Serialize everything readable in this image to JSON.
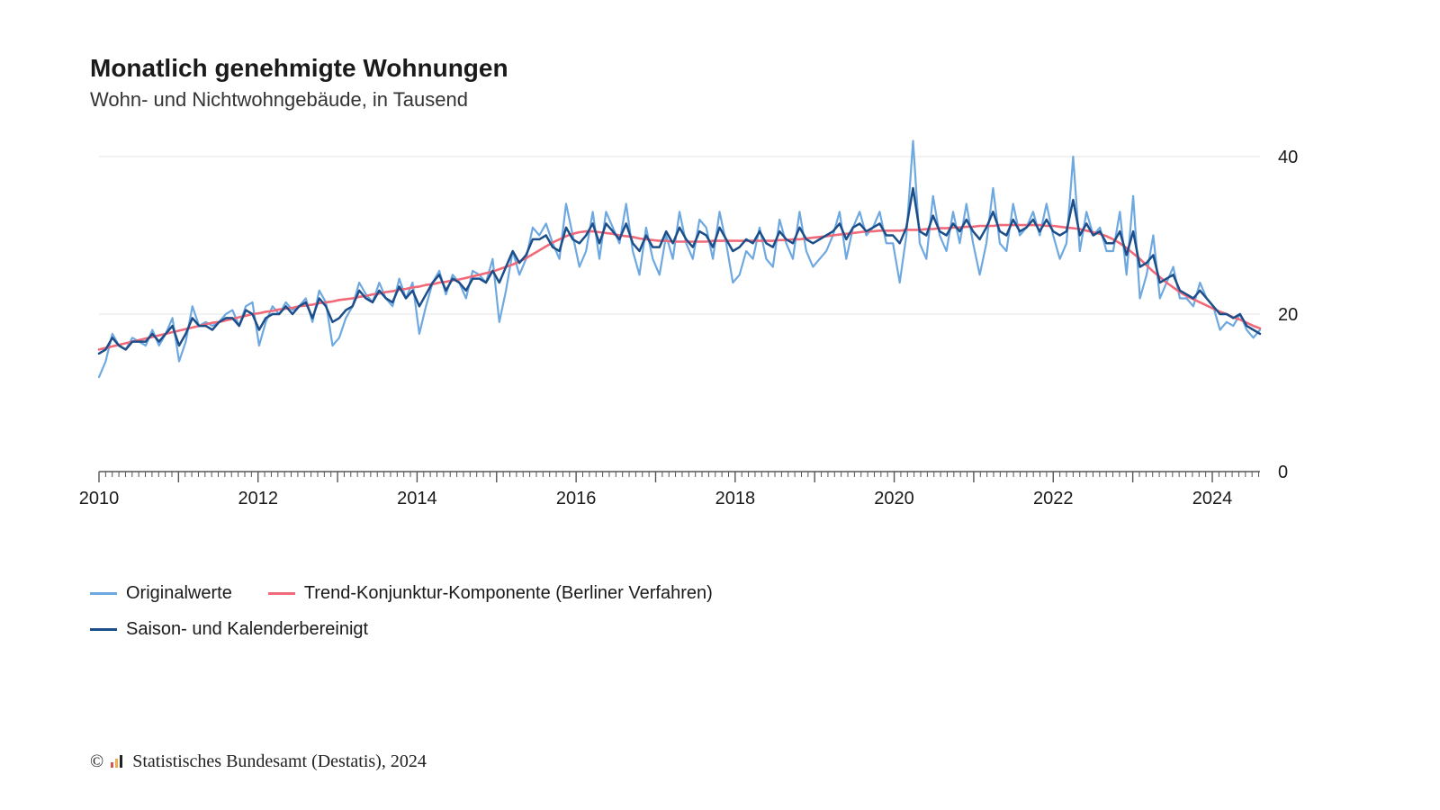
{
  "header": {
    "title": "Monatlich genehmigte Wohnungen",
    "subtitle": "Wohn- und Nichtwohngebäude, in Tausend"
  },
  "chart": {
    "type": "line",
    "background_color": "#ffffff",
    "grid_color": "#e4e4e4",
    "axis_color": "#555555",
    "tick_color": "#555555",
    "label_color": "#1a1a1a",
    "label_fontsize": 20,
    "x": {
      "min": 2010.0,
      "max": 2024.6,
      "major_ticks": [
        2010,
        2012,
        2014,
        2016,
        2018,
        2020,
        2022,
        2024
      ],
      "minor_step_months": 1
    },
    "y": {
      "min": 0,
      "max": 40,
      "ticks": [
        0,
        20,
        40
      ],
      "grid_at": [
        20,
        40
      ]
    },
    "series": [
      {
        "id": "original",
        "label": "Originalwerte",
        "color": "#6ea8e0",
        "width": 2.2,
        "values": [
          12.0,
          14.0,
          17.5,
          16.0,
          15.5,
          17.0,
          16.5,
          16.0,
          18.0,
          16.0,
          17.5,
          19.5,
          14.0,
          16.5,
          21.0,
          18.5,
          19.0,
          18.5,
          19.0,
          20.0,
          20.5,
          18.5,
          21.0,
          21.5,
          16.0,
          19.0,
          21.0,
          20.0,
          21.5,
          20.5,
          21.0,
          22.0,
          19.0,
          23.0,
          21.5,
          16.0,
          17.0,
          19.5,
          21.0,
          24.0,
          22.5,
          21.5,
          24.0,
          22.0,
          21.0,
          24.5,
          22.0,
          24.0,
          17.5,
          21.0,
          24.0,
          25.5,
          22.5,
          25.0,
          24.0,
          22.0,
          25.5,
          25.0,
          24.0,
          27.0,
          19.0,
          23.0,
          28.0,
          25.0,
          27.0,
          31.0,
          30.0,
          31.5,
          29.0,
          27.0,
          34.0,
          30.0,
          26.0,
          28.0,
          33.0,
          27.0,
          33.0,
          31.0,
          29.0,
          34.0,
          28.0,
          25.0,
          31.0,
          27.0,
          25.0,
          30.0,
          27.0,
          33.0,
          29.0,
          27.0,
          32.0,
          31.0,
          27.0,
          33.0,
          29.0,
          24.0,
          25.0,
          28.0,
          27.0,
          31.0,
          27.0,
          26.0,
          32.0,
          29.0,
          27.0,
          33.0,
          28.0,
          26.0,
          27.0,
          28.0,
          30.0,
          33.0,
          27.0,
          31.0,
          33.0,
          30.0,
          31.0,
          33.0,
          29.0,
          29.0,
          24.0,
          30.0,
          42.0,
          29.0,
          27.0,
          35.0,
          30.0,
          28.0,
          33.0,
          29.0,
          34.0,
          29.0,
          25.0,
          29.0,
          36.0,
          29.0,
          28.0,
          34.0,
          30.0,
          31.0,
          33.0,
          30.0,
          34.0,
          30.0,
          27.0,
          29.0,
          40.0,
          28.0,
          33.0,
          30.0,
          31.0,
          28.0,
          28.0,
          33.0,
          25.0,
          35.0,
          22.0,
          25.0,
          30.0,
          22.0,
          24.0,
          26.0,
          22.0,
          22.0,
          21.0,
          24.0,
          22.0,
          21.0,
          18.0,
          19.0,
          18.5,
          20.0,
          18.0,
          17.0,
          18.0
        ]
      },
      {
        "id": "trend",
        "label": "Trend-Konjunktur-Komponente (Berliner Verfahren)",
        "color": "#f06a7a",
        "width": 2.6,
        "values": [
          15.5,
          15.7,
          15.9,
          16.1,
          16.3,
          16.5,
          16.7,
          16.9,
          17.1,
          17.3,
          17.5,
          17.7,
          17.9,
          18.1,
          18.3,
          18.5,
          18.7,
          18.9,
          19.0,
          19.2,
          19.4,
          19.6,
          19.8,
          20.0,
          20.1,
          20.3,
          20.4,
          20.6,
          20.7,
          20.8,
          21.0,
          21.1,
          21.2,
          21.4,
          21.5,
          21.6,
          21.8,
          21.9,
          22.0,
          22.2,
          22.3,
          22.5,
          22.6,
          22.8,
          22.9,
          23.1,
          23.2,
          23.4,
          23.5,
          23.7,
          23.8,
          24.0,
          24.1,
          24.3,
          24.4,
          24.6,
          24.8,
          25.0,
          25.2,
          25.4,
          25.7,
          26.0,
          26.3,
          26.7,
          27.1,
          27.6,
          28.1,
          28.6,
          29.1,
          29.5,
          29.9,
          30.2,
          30.4,
          30.5,
          30.5,
          30.4,
          30.3,
          30.2,
          30.0,
          29.9,
          29.8,
          29.6,
          29.5,
          29.4,
          29.3,
          29.3,
          29.2,
          29.2,
          29.2,
          29.2,
          29.2,
          29.2,
          29.3,
          29.3,
          29.3,
          29.3,
          29.3,
          29.3,
          29.3,
          29.3,
          29.3,
          29.3,
          29.4,
          29.4,
          29.5,
          29.5,
          29.6,
          29.7,
          29.8,
          29.9,
          30.0,
          30.1,
          30.2,
          30.3,
          30.4,
          30.5,
          30.5,
          30.6,
          30.6,
          30.6,
          30.6,
          30.7,
          30.7,
          30.7,
          30.8,
          30.8,
          30.9,
          30.9,
          31.0,
          31.0,
          31.1,
          31.1,
          31.2,
          31.2,
          31.2,
          31.3,
          31.3,
          31.3,
          31.3,
          31.3,
          31.3,
          31.3,
          31.2,
          31.2,
          31.1,
          31.0,
          30.9,
          30.8,
          30.6,
          30.4,
          30.2,
          29.9,
          29.5,
          29.0,
          28.4,
          27.7,
          27.0,
          26.2,
          25.4,
          24.7,
          24.0,
          23.4,
          22.8,
          22.3,
          21.9,
          21.5,
          21.1,
          20.7,
          20.3,
          20.0,
          19.6,
          19.3,
          18.9,
          18.5,
          18.2
        ]
      },
      {
        "id": "adjusted",
        "label": "Saison- und Kalenderbereinigt",
        "color": "#1c4e89",
        "width": 2.5,
        "values": [
          15.0,
          15.5,
          17.0,
          16.0,
          15.5,
          16.5,
          16.5,
          16.5,
          17.5,
          16.5,
          17.5,
          18.5,
          16.0,
          17.5,
          19.5,
          18.5,
          18.5,
          18.0,
          19.0,
          19.5,
          19.5,
          18.5,
          20.5,
          20.0,
          18.0,
          19.5,
          20.0,
          20.0,
          21.0,
          20.0,
          21.0,
          21.5,
          19.5,
          22.0,
          21.0,
          19.0,
          19.5,
          20.5,
          21.0,
          23.0,
          22.0,
          21.5,
          23.0,
          22.0,
          21.5,
          23.5,
          22.0,
          23.0,
          21.0,
          22.5,
          24.0,
          25.0,
          23.0,
          24.5,
          24.0,
          23.0,
          24.5,
          24.5,
          24.0,
          25.5,
          24.0,
          26.0,
          28.0,
          26.5,
          27.5,
          29.5,
          29.5,
          30.0,
          28.5,
          28.0,
          31.0,
          29.5,
          29.0,
          30.0,
          31.5,
          29.0,
          31.5,
          30.5,
          29.5,
          31.5,
          29.0,
          28.0,
          30.0,
          28.5,
          28.5,
          30.5,
          29.0,
          31.0,
          29.5,
          28.5,
          30.5,
          30.0,
          28.5,
          31.0,
          29.5,
          28.0,
          28.5,
          29.5,
          29.0,
          30.5,
          29.0,
          28.5,
          30.5,
          29.5,
          29.0,
          31.0,
          29.5,
          29.0,
          29.5,
          30.0,
          30.5,
          31.5,
          29.5,
          31.0,
          31.5,
          30.5,
          31.0,
          31.5,
          30.0,
          30.0,
          29.0,
          31.0,
          36.0,
          30.5,
          30.0,
          32.5,
          30.5,
          30.0,
          31.5,
          30.5,
          32.0,
          30.5,
          29.5,
          31.0,
          33.0,
          30.5,
          30.0,
          32.0,
          30.5,
          31.0,
          32.0,
          30.5,
          32.0,
          30.5,
          30.0,
          30.5,
          34.5,
          30.0,
          31.5,
          30.0,
          30.5,
          29.0,
          29.0,
          30.5,
          27.5,
          30.5,
          26.0,
          26.5,
          27.5,
          24.0,
          24.5,
          25.0,
          23.0,
          22.5,
          22.0,
          23.0,
          22.0,
          21.0,
          20.0,
          20.0,
          19.5,
          20.0,
          18.5,
          18.0,
          17.5
        ]
      }
    ]
  },
  "legend": {
    "items": [
      {
        "series": "original",
        "label": "Originalwerte"
      },
      {
        "series": "trend",
        "label": "Trend-Konjunktur-Komponente (Berliner Verfahren)"
      },
      {
        "series": "adjusted",
        "label": "Saison- und Kalenderbereinigt"
      }
    ]
  },
  "source": {
    "prefix": "©",
    "text": "Statistisches Bundesamt (Destatis), 2024",
    "logo_colors": [
      "#d9534f",
      "#f0ad4e",
      "#222222"
    ]
  }
}
